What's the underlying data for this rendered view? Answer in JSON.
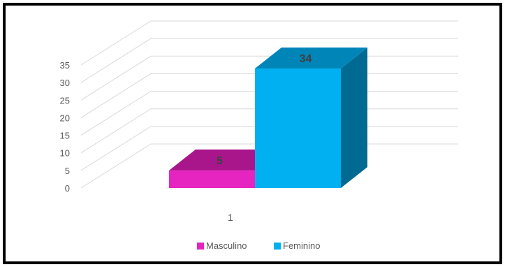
{
  "chart_data": {
    "type": "bar",
    "categories": [
      "1"
    ],
    "series": [
      {
        "name": "Masculino",
        "values": [
          5
        ],
        "color": "#e624c0",
        "top_color": "#a9168c"
      },
      {
        "name": "Feminino",
        "values": [
          34
        ],
        "color": "#00b0f0",
        "top_color": "#0085b8",
        "side_color": "#006a93"
      }
    ],
    "y_ticks": [
      "35",
      "30",
      "25",
      "20",
      "15",
      "10",
      "5",
      "0"
    ],
    "ylim": [
      0,
      35
    ],
    "grid": true,
    "legend_position": "bottom",
    "style": "3d-column",
    "data_labels": [
      "5",
      "34"
    ]
  }
}
